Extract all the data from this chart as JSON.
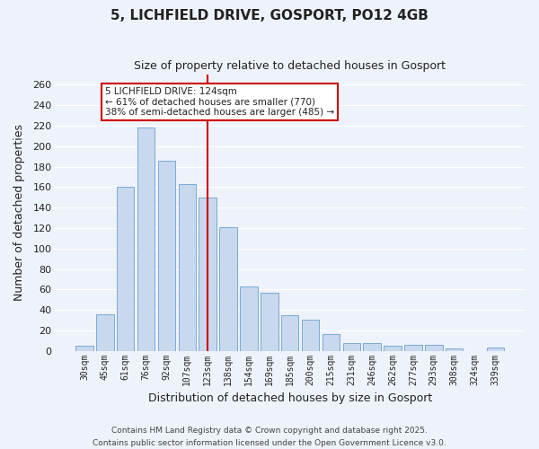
{
  "title": "5, LICHFIELD DRIVE, GOSPORT, PO12 4GB",
  "subtitle": "Size of property relative to detached houses in Gosport",
  "xlabel": "Distribution of detached houses by size in Gosport",
  "ylabel": "Number of detached properties",
  "bar_color": "#c8d8ee",
  "bar_edge_color": "#7aaad4",
  "background_color": "#eef2fa",
  "grid_color": "#ffffff",
  "categories": [
    "30sqm",
    "45sqm",
    "61sqm",
    "76sqm",
    "92sqm",
    "107sqm",
    "123sqm",
    "138sqm",
    "154sqm",
    "169sqm",
    "185sqm",
    "200sqm",
    "215sqm",
    "231sqm",
    "246sqm",
    "262sqm",
    "277sqm",
    "293sqm",
    "308sqm",
    "324sqm",
    "339sqm"
  ],
  "values": [
    5,
    36,
    160,
    218,
    186,
    163,
    150,
    121,
    63,
    57,
    35,
    30,
    16,
    8,
    8,
    5,
    6,
    6,
    2,
    0,
    3
  ],
  "vline_index": 6,
  "vline_color": "#cc0000",
  "annotation_title": "5 LICHFIELD DRIVE: 124sqm",
  "annotation_line1": "← 61% of detached houses are smaller (770)",
  "annotation_line2": "38% of semi-detached houses are larger (485) →",
  "annotation_box_color": "#ffffff",
  "annotation_box_edge": "#cc0000",
  "ylim": [
    0,
    270
  ],
  "yticks": [
    0,
    20,
    40,
    60,
    80,
    100,
    120,
    140,
    160,
    180,
    200,
    220,
    240,
    260
  ],
  "footnote1": "Contains HM Land Registry data © Crown copyright and database right 2025.",
  "footnote2": "Contains public sector information licensed under the Open Government Licence v3.0."
}
